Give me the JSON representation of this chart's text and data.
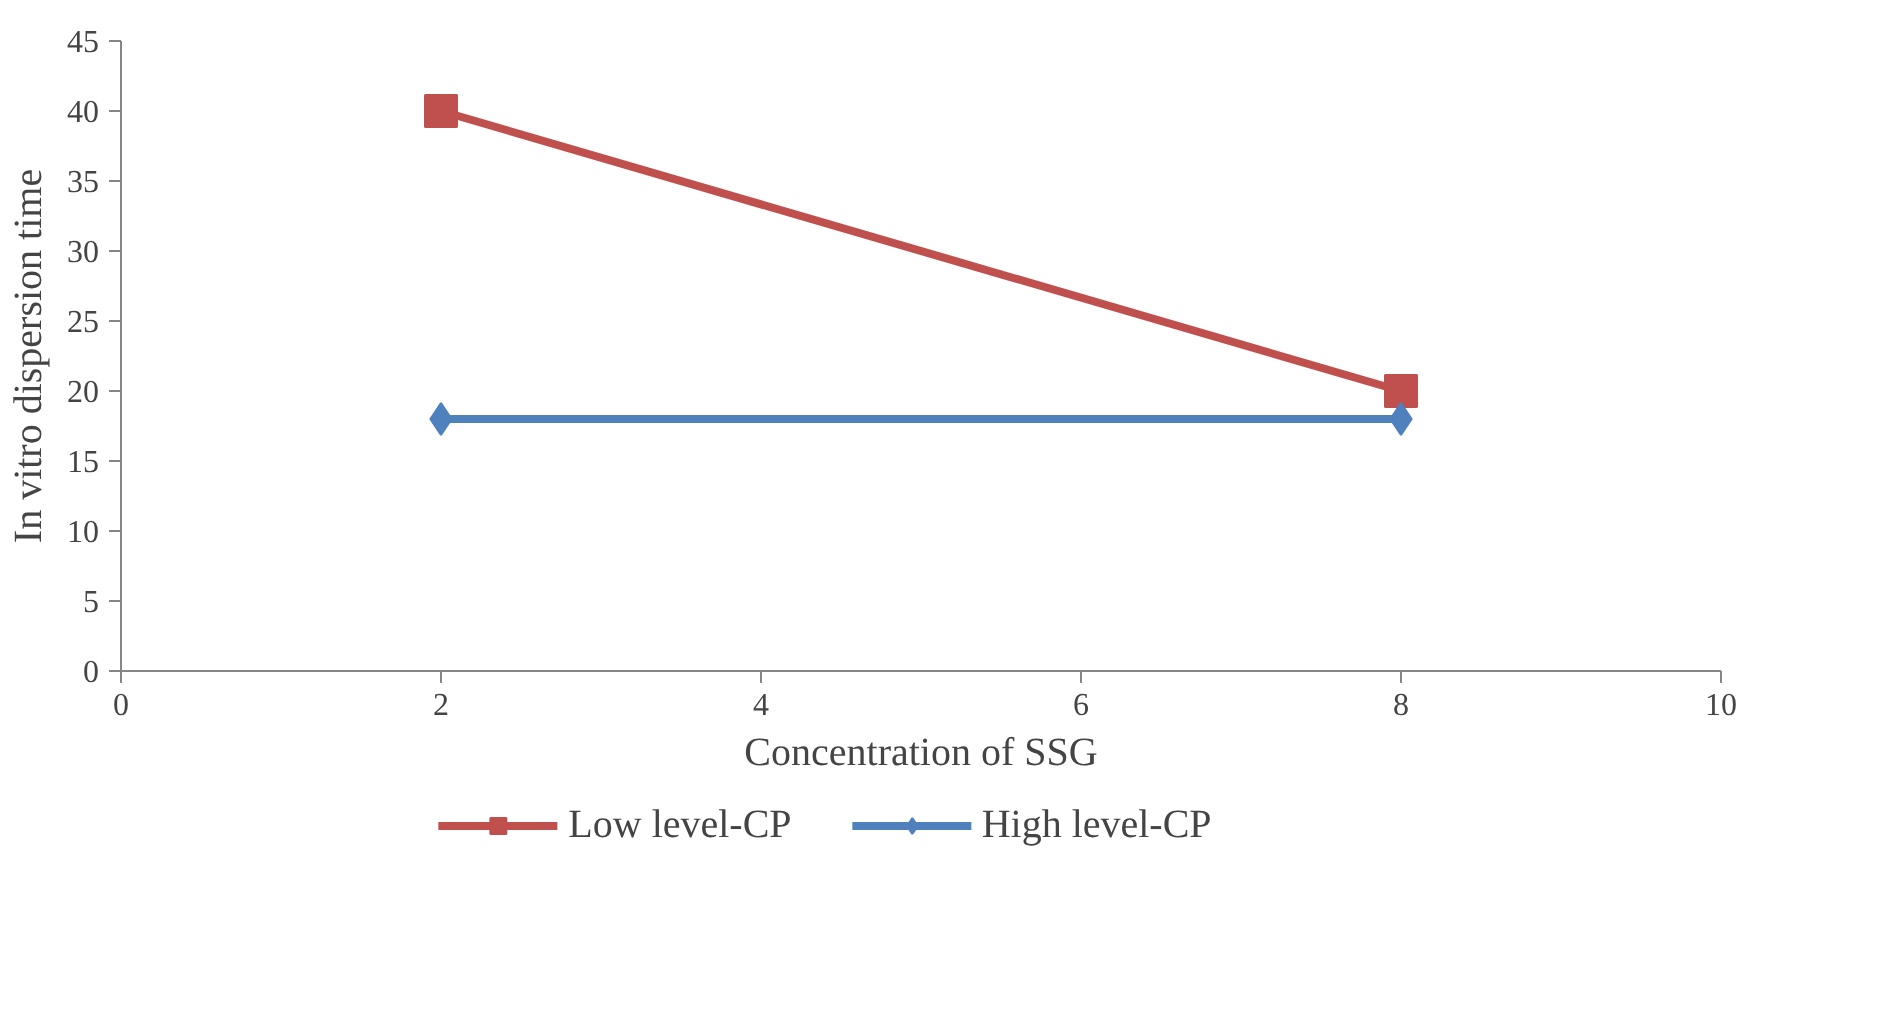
{
  "chart_data": {
    "type": "line",
    "xlabel": "Concentration of SSG",
    "ylabel": "In vitro dispersion time",
    "x": [
      2,
      8
    ],
    "series": [
      {
        "name": "Low level-CP",
        "color": "#c0504d",
        "values": [
          40,
          20
        ],
        "marker": "square"
      },
      {
        "name": "High level-CP",
        "color": "#4f81bd",
        "values": [
          18,
          18
        ],
        "marker": "diamond"
      }
    ],
    "xlim": [
      0,
      10
    ],
    "xticks": [
      0,
      2,
      4,
      6,
      8,
      10
    ],
    "ylim": [
      0,
      45
    ],
    "yticks": [
      0,
      5,
      10,
      15,
      20,
      25,
      30,
      35,
      40,
      45
    ],
    "grid": false,
    "legend": "bottom",
    "line_style": "solid"
  }
}
